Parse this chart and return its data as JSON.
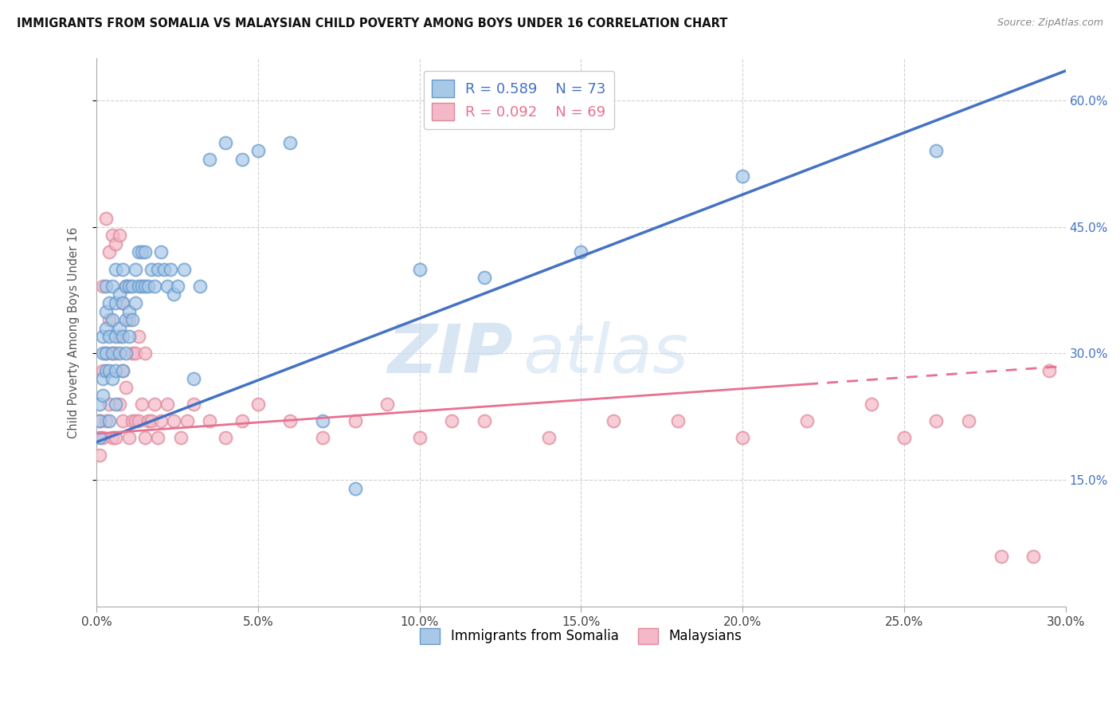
{
  "title": "IMMIGRANTS FROM SOMALIA VS MALAYSIAN CHILD POVERTY AMONG BOYS UNDER 16 CORRELATION CHART",
  "source": "Source: ZipAtlas.com",
  "ylabel": "Child Poverty Among Boys Under 16",
  "xlim": [
    0.0,
    0.3
  ],
  "ylim": [
    0.0,
    0.65
  ],
  "y_ticks": [
    0.15,
    0.3,
    0.45,
    0.6
  ],
  "x_ticks": [
    0.0,
    0.05,
    0.1,
    0.15,
    0.2,
    0.25,
    0.3
  ],
  "legend1_r": "0.589",
  "legend1_n": "73",
  "legend2_r": "0.092",
  "legend2_n": "69",
  "color_somalia": "#A8C8E8",
  "color_malaysia": "#F4B8C8",
  "color_somalia_edge": "#6699CC",
  "color_malaysia_edge": "#DD8899",
  "regression_somalia_color": "#4472C4",
  "regression_malaysia_color": "#E87090",
  "watermark_zip": "ZIP",
  "watermark_atlas": "atlas",
  "regression_somalia_x0": 0.0,
  "regression_somalia_y0": 0.195,
  "regression_somalia_x1": 0.3,
  "regression_somalia_y1": 0.635,
  "regression_malaysia_x0": 0.0,
  "regression_malaysia_y0": 0.205,
  "regression_malaysia_x1": 0.3,
  "regression_malaysia_y1": 0.285,
  "somalia_x": [
    0.001,
    0.001,
    0.001,
    0.002,
    0.002,
    0.002,
    0.002,
    0.003,
    0.003,
    0.003,
    0.003,
    0.003,
    0.004,
    0.004,
    0.004,
    0.004,
    0.005,
    0.005,
    0.005,
    0.005,
    0.006,
    0.006,
    0.006,
    0.006,
    0.006,
    0.007,
    0.007,
    0.007,
    0.008,
    0.008,
    0.008,
    0.008,
    0.009,
    0.009,
    0.009,
    0.01,
    0.01,
    0.01,
    0.011,
    0.011,
    0.012,
    0.012,
    0.013,
    0.013,
    0.014,
    0.014,
    0.015,
    0.015,
    0.016,
    0.017,
    0.018,
    0.019,
    0.02,
    0.021,
    0.022,
    0.023,
    0.024,
    0.025,
    0.027,
    0.03,
    0.032,
    0.035,
    0.04,
    0.045,
    0.05,
    0.06,
    0.07,
    0.08,
    0.1,
    0.12,
    0.15,
    0.2,
    0.26
  ],
  "somalia_y": [
    0.2,
    0.22,
    0.24,
    0.25,
    0.27,
    0.3,
    0.32,
    0.28,
    0.3,
    0.33,
    0.35,
    0.38,
    0.22,
    0.28,
    0.32,
    0.36,
    0.27,
    0.3,
    0.34,
    0.38,
    0.24,
    0.28,
    0.32,
    0.36,
    0.4,
    0.3,
    0.33,
    0.37,
    0.28,
    0.32,
    0.36,
    0.4,
    0.3,
    0.34,
    0.38,
    0.32,
    0.35,
    0.38,
    0.34,
    0.38,
    0.36,
    0.4,
    0.38,
    0.42,
    0.38,
    0.42,
    0.38,
    0.42,
    0.38,
    0.4,
    0.38,
    0.4,
    0.42,
    0.4,
    0.38,
    0.4,
    0.37,
    0.38,
    0.4,
    0.27,
    0.38,
    0.53,
    0.55,
    0.53,
    0.54,
    0.55,
    0.22,
    0.14,
    0.4,
    0.39,
    0.42,
    0.51,
    0.54
  ],
  "malaysia_x": [
    0.001,
    0.001,
    0.002,
    0.002,
    0.002,
    0.003,
    0.003,
    0.003,
    0.004,
    0.004,
    0.004,
    0.005,
    0.005,
    0.005,
    0.006,
    0.006,
    0.006,
    0.007,
    0.007,
    0.007,
    0.008,
    0.008,
    0.008,
    0.009,
    0.009,
    0.01,
    0.01,
    0.011,
    0.011,
    0.012,
    0.012,
    0.013,
    0.013,
    0.014,
    0.015,
    0.015,
    0.016,
    0.017,
    0.018,
    0.019,
    0.02,
    0.022,
    0.024,
    0.026,
    0.028,
    0.03,
    0.035,
    0.04,
    0.045,
    0.05,
    0.06,
    0.07,
    0.08,
    0.09,
    0.1,
    0.11,
    0.12,
    0.14,
    0.16,
    0.18,
    0.2,
    0.22,
    0.24,
    0.25,
    0.26,
    0.27,
    0.28,
    0.29,
    0.295
  ],
  "malaysia_y": [
    0.18,
    0.22,
    0.2,
    0.28,
    0.38,
    0.22,
    0.3,
    0.46,
    0.24,
    0.34,
    0.42,
    0.2,
    0.3,
    0.44,
    0.2,
    0.3,
    0.43,
    0.24,
    0.32,
    0.44,
    0.22,
    0.28,
    0.36,
    0.26,
    0.38,
    0.2,
    0.34,
    0.22,
    0.3,
    0.22,
    0.3,
    0.22,
    0.32,
    0.24,
    0.2,
    0.3,
    0.22,
    0.22,
    0.24,
    0.2,
    0.22,
    0.24,
    0.22,
    0.2,
    0.22,
    0.24,
    0.22,
    0.2,
    0.22,
    0.24,
    0.22,
    0.2,
    0.22,
    0.24,
    0.2,
    0.22,
    0.22,
    0.2,
    0.22,
    0.22,
    0.2,
    0.22,
    0.24,
    0.2,
    0.22,
    0.22,
    0.06,
    0.06,
    0.28
  ]
}
